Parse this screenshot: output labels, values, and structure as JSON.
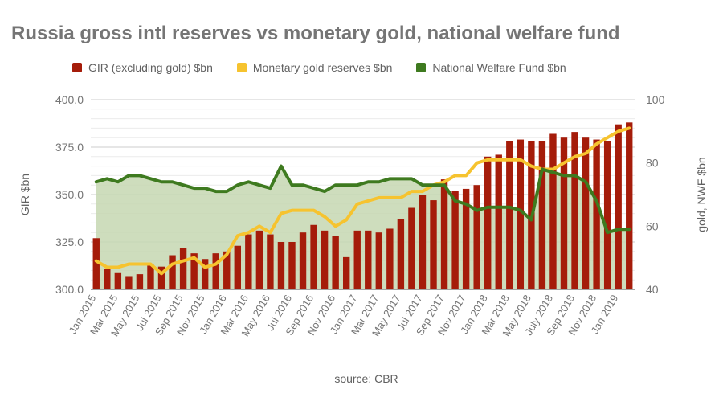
{
  "chart_data": {
    "type": "bar+line",
    "title": "Russia gross intl reserves vs monetary gold, national welfare fund",
    "source_text": "source: CBR",
    "ylabel_left": "GIR $bn",
    "ylabel_right": "gold, NWF $bn",
    "y_left_range": [
      300,
      400
    ],
    "y_left_ticks": [
      "400.0",
      "375.0",
      "350.0",
      "325.0",
      "300.0"
    ],
    "y_right_range": [
      40,
      100
    ],
    "y_right_ticks": [
      "100",
      "80",
      "60",
      "40"
    ],
    "grid": true,
    "legend_position": "top",
    "x_tick_labels": [
      "Jan 2015",
      "Mar 2015",
      "May 2015",
      "Jul 2015",
      "Sep 2015",
      "Nov 2015",
      "Jan 2016",
      "Mar 2016",
      "May 2016",
      "Jul 2016",
      "Sep 2016",
      "Nov 2016",
      "Jan 2017",
      "Mar 2017",
      "May 2017",
      "Jul 2017",
      "Sep 2017",
      "Nov 2017",
      "Jan 2018",
      "Mar 2018",
      "May 2018",
      "July 2018",
      "Sep 2018",
      "Nov 2018",
      "Jan 2019"
    ],
    "series": [
      {
        "name": "GIR (excluding gold) $bn",
        "type": "bar",
        "color": "#a51c0a",
        "values": [
          327,
          311,
          309,
          307,
          308,
          313,
          312,
          318,
          322,
          319,
          316,
          319,
          320,
          323,
          329,
          331,
          329,
          325,
          325,
          330,
          334,
          331,
          328,
          317,
          331,
          331,
          330,
          332,
          337,
          343,
          350,
          347,
          358,
          352,
          353,
          355,
          370,
          371,
          378,
          379,
          378,
          378,
          382,
          380,
          383,
          380,
          379,
          378,
          387,
          388
        ]
      },
      {
        "name": "Monetary gold reserves $bn",
        "type": "line",
        "color": "#f6c32f",
        "values": [
          49,
          47,
          47,
          48,
          48,
          48,
          45,
          48,
          49,
          50,
          47,
          48,
          51,
          57,
          58,
          60,
          58,
          64,
          65,
          65,
          65,
          63,
          60,
          62,
          67,
          68,
          69,
          69,
          69,
          71,
          71,
          73,
          74,
          76,
          76,
          80,
          81,
          81,
          81,
          81,
          79,
          78,
          78,
          80,
          82,
          83,
          86,
          88,
          90,
          91
        ]
      },
      {
        "name": "National Welfare Fund $bn",
        "type": "area",
        "color": "#3e7a1f",
        "fill": "#c5d7b1",
        "values": [
          74,
          75,
          74,
          76,
          76,
          75,
          74,
          74,
          73,
          72,
          72,
          71,
          71,
          73,
          74,
          73,
          72,
          79,
          73,
          73,
          72,
          71,
          73,
          73,
          73,
          74,
          74,
          75,
          75,
          75,
          73,
          73,
          73,
          68,
          67,
          65,
          66,
          66,
          66,
          65,
          62,
          78,
          77,
          76,
          76,
          74,
          68,
          58,
          59,
          59
        ]
      }
    ]
  }
}
